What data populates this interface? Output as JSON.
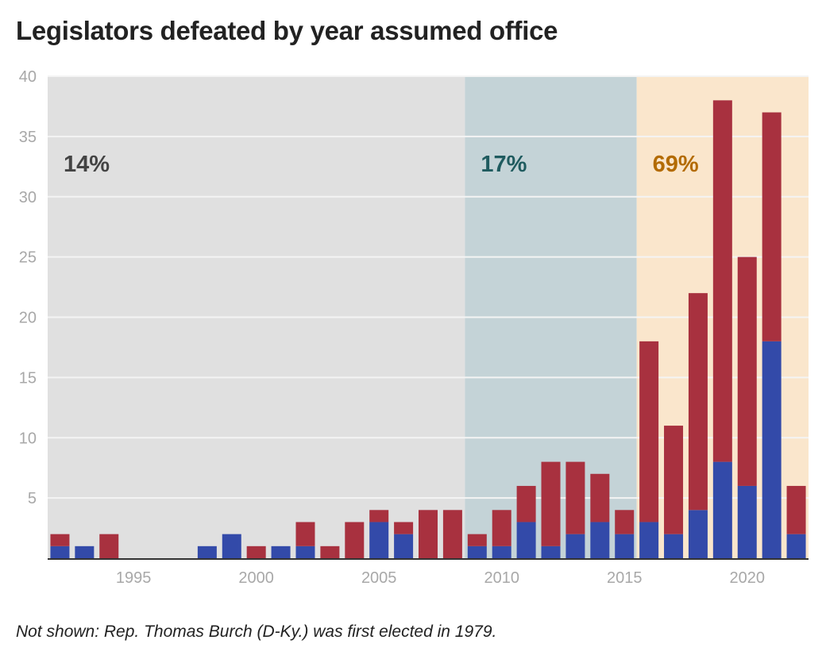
{
  "title": "Legislators defeated by year assumed office",
  "footnote": "Not shown: Rep. Thomas Burch (D-Ky.) was first elected in 1979.",
  "chart_data": {
    "type": "bar",
    "stacked": true,
    "title": "Legislators defeated by year assumed office",
    "xlabel": "",
    "ylabel": "",
    "xlim": [
      1991.5,
      2022.5
    ],
    "ylim": [
      0,
      40
    ],
    "yticks": [
      5,
      10,
      15,
      20,
      25,
      30,
      35,
      40
    ],
    "xticks": [
      1995,
      2000,
      2005,
      2010,
      2015,
      2020
    ],
    "grid": true,
    "categories": [
      1992,
      1993,
      1994,
      1995,
      1996,
      1997,
      1998,
      1999,
      2000,
      2001,
      2002,
      2003,
      2004,
      2005,
      2006,
      2007,
      2008,
      2009,
      2010,
      2011,
      2012,
      2013,
      2014,
      2015,
      2016,
      2017,
      2018,
      2019,
      2020,
      2021,
      2022
    ],
    "series": [
      {
        "color": "#334aa9",
        "values": [
          1,
          1,
          0,
          0,
          0,
          0,
          1,
          2,
          0,
          1,
          1,
          0,
          0,
          3,
          2,
          0,
          0,
          1,
          1,
          3,
          1,
          2,
          3,
          2,
          3,
          2,
          4,
          8,
          6,
          18,
          2
        ]
      },
      {
        "color": "#a8313f",
        "values": [
          1,
          0,
          2,
          0,
          0,
          0,
          0,
          0,
          1,
          0,
          2,
          1,
          3,
          1,
          1,
          4,
          4,
          1,
          3,
          3,
          7,
          6,
          4,
          2,
          15,
          9,
          18,
          30,
          19,
          19,
          4
        ]
      }
    ],
    "totals": [
      2,
      1,
      2,
      0,
      0,
      0,
      1,
      2,
      1,
      1,
      3,
      1,
      3,
      4,
      3,
      4,
      4,
      2,
      4,
      6,
      8,
      8,
      7,
      4,
      18,
      11,
      22,
      38,
      25,
      37,
      6
    ],
    "eras": [
      {
        "from": 1991.5,
        "to": 2008.5,
        "label": "14%",
        "bg": "#e0e0e0",
        "color": "#444444"
      },
      {
        "from": 2008.5,
        "to": 2015.5,
        "label": "17%",
        "bg": "#c4d3d7",
        "color": "#1f5b5f"
      },
      {
        "from": 2015.5,
        "to": 2022.5,
        "label": "69%",
        "bg": "#fae6cc",
        "color": "#b36b00"
      }
    ]
  }
}
